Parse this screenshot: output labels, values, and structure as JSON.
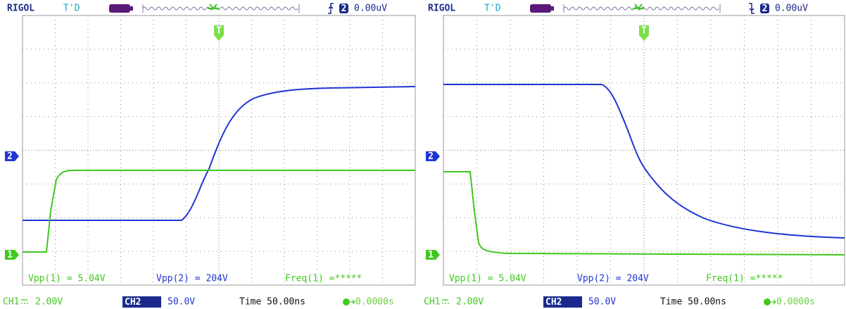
{
  "panels": [
    {
      "header": {
        "brand": "RIGOL",
        "status": "T'D",
        "trigger_channel": "2",
        "trigger_level": "0.00uV",
        "trigger_marker": "T"
      },
      "channel_markers": [
        "2",
        "1"
      ],
      "measurements": [
        "Vpp(1) = 5.04V",
        "Vpp(2) = 204V",
        "Freq(1) =*****"
      ],
      "footer": {
        "ch1": "CH1",
        "ch1_scale": "2.00V",
        "ch2": "CH2",
        "ch2_scale": "50.0V",
        "time": "Time 50.00ns",
        "offset": "0.0000s"
      }
    },
    {
      "header": {
        "brand": "RIGOL",
        "status": "T'D",
        "trigger_channel": "2",
        "trigger_level": "0.00uV",
        "trigger_marker": "T"
      },
      "channel_markers": [
        "2",
        "1"
      ],
      "measurements": [
        "Vpp(1) = 5.04V",
        "Vpp(2) = 204V",
        "Freq(1) =*****"
      ],
      "footer": {
        "ch1": "CH1",
        "ch1_scale": "2.00V",
        "ch2": "CH2",
        "ch2_scale": "50.0V",
        "time": "Time 50.00ns",
        "offset": "0.0000s"
      }
    }
  ]
}
